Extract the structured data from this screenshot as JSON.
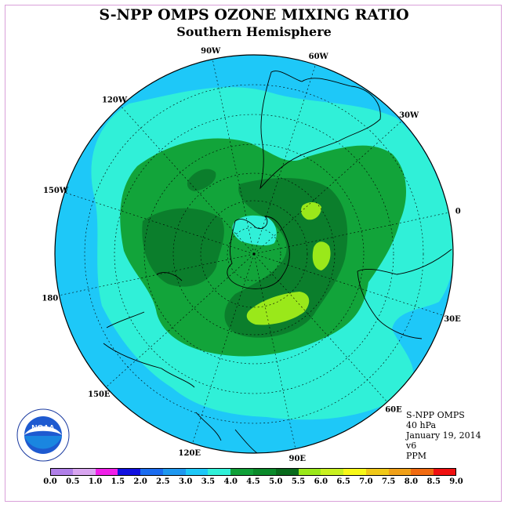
{
  "title": "S-NPP OMPS OZONE MIXING RATIO",
  "subtitle": "Southern Hemisphere",
  "info": {
    "line1": "S-NPP OMPS",
    "line2": "40 hPa",
    "line3": "January 19, 2014",
    "line4": "v6",
    "line5": "PPM"
  },
  "logo_text": "NOAA",
  "longitude_labels": [
    "90W",
    "60W",
    "30W",
    "0",
    "30E",
    "60E",
    "90E",
    "120E",
    "150E",
    "180",
    "150W",
    "120W"
  ],
  "colorbar": {
    "ticks": [
      "0.0",
      "0.5",
      "1.0",
      "1.5",
      "2.0",
      "2.5",
      "3.0",
      "3.5",
      "4.0",
      "4.5",
      "5.0",
      "5.5",
      "6.0",
      "6.5",
      "7.0",
      "7.5",
      "8.0",
      "8.5",
      "9.0"
    ],
    "colors": [
      "#b07fe8",
      "#d9a6f0",
      "#f020e8",
      "#1010e0",
      "#1a6cf0",
      "#1e98f0",
      "#1ec8f8",
      "#30f0d8",
      "#10a038",
      "#0a8a2a",
      "#086a1c",
      "#9ae81a",
      "#c8f020",
      "#f8f818",
      "#f0c818",
      "#f0a018",
      "#f06a10",
      "#f01010",
      "#8a4a28"
    ]
  },
  "colors": {
    "outer": "#1ec8f8",
    "ring_3_5": "#30f0d8",
    "ring_4_0": "#12a43a",
    "ring_4_5": "#0b7e2c",
    "peak_5_0": "#9ae81a"
  }
}
